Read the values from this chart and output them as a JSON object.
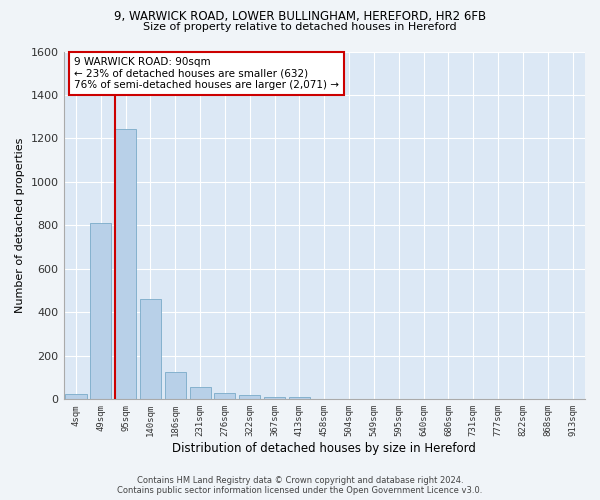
{
  "title_line1": "9, WARWICK ROAD, LOWER BULLINGHAM, HEREFORD, HR2 6FB",
  "title_line2": "Size of property relative to detached houses in Hereford",
  "xlabel": "Distribution of detached houses by size in Hereford",
  "ylabel": "Number of detached properties",
  "bar_color": "#b8d0e8",
  "bar_edge_color": "#7aaac8",
  "bg_color": "#dce8f5",
  "grid_color": "#ffffff",
  "fig_bg_color": "#f0f4f8",
  "categories": [
    "4sqm",
    "49sqm",
    "95sqm",
    "140sqm",
    "186sqm",
    "231sqm",
    "276sqm",
    "322sqm",
    "367sqm",
    "413sqm",
    "458sqm",
    "504sqm",
    "549sqm",
    "595sqm",
    "640sqm",
    "686sqm",
    "731sqm",
    "777sqm",
    "822sqm",
    "868sqm",
    "913sqm"
  ],
  "values": [
    25,
    810,
    1245,
    460,
    125,
    58,
    28,
    18,
    12,
    10,
    0,
    0,
    0,
    0,
    0,
    0,
    0,
    0,
    0,
    0,
    0
  ],
  "ylim": [
    0,
    1600
  ],
  "yticks": [
    0,
    200,
    400,
    600,
    800,
    1000,
    1200,
    1400,
    1600
  ],
  "vline_x_idx": 2,
  "vline_color": "#cc0000",
  "annotation_text": "9 WARWICK ROAD: 90sqm\n← 23% of detached houses are smaller (632)\n76% of semi-detached houses are larger (2,071) →",
  "annotation_box_color": "#ffffff",
  "annotation_box_edge": "#cc0000",
  "footer_line1": "Contains HM Land Registry data © Crown copyright and database right 2024.",
  "footer_line2": "Contains public sector information licensed under the Open Government Licence v3.0."
}
